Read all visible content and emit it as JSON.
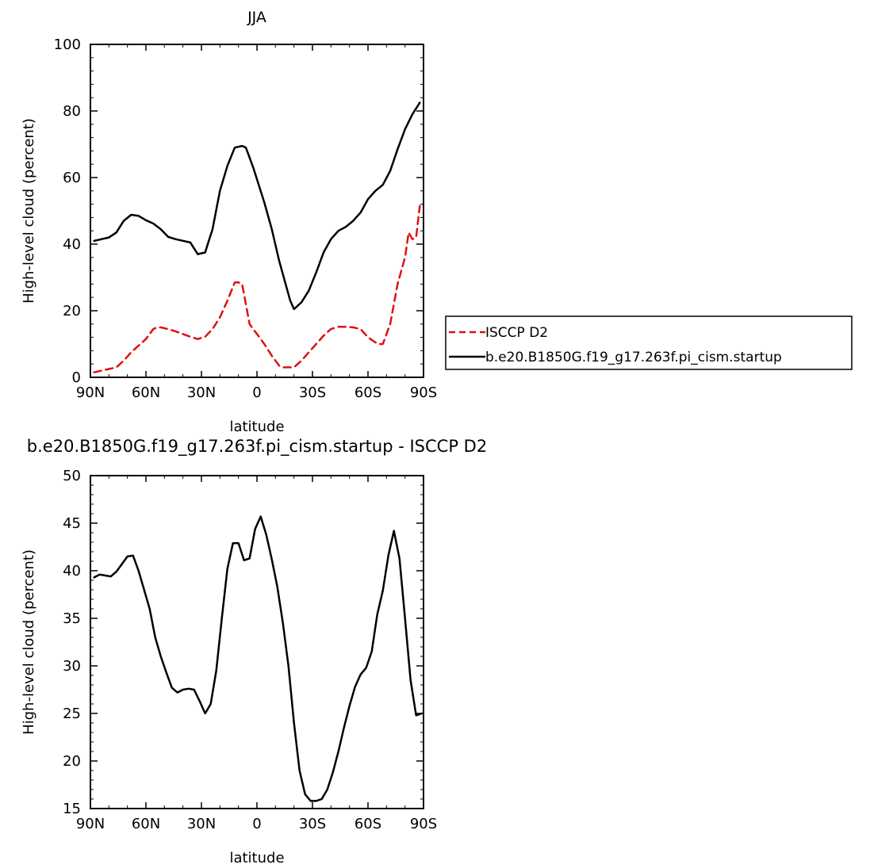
{
  "chart_data": [
    {
      "type": "line",
      "title": "JJA",
      "xlabel": "latitude",
      "ylabel": "High-level cloud (percent)",
      "xlim": [
        -90,
        90
      ],
      "ylim": [
        0,
        100
      ],
      "x_ticks": [
        -90,
        -60,
        -30,
        0,
        30,
        60,
        90
      ],
      "x_tick_labels": [
        "90N",
        "60N",
        "30N",
        "0",
        "30S",
        "60S",
        "90S"
      ],
      "y_ticks": [
        0,
        20,
        40,
        60,
        80,
        100
      ],
      "y_tick_labels": [
        "0",
        "20",
        "40",
        "60",
        "80",
        "100"
      ],
      "legend_position": "right",
      "series": [
        {
          "name": "ISCCP D2",
          "color": "#e01010",
          "dashed": true,
          "x": [
            -88,
            -84,
            -80,
            -76,
            -72,
            -68,
            -64,
            -60,
            -56,
            -54,
            -52,
            -48,
            -44,
            -40,
            -36,
            -32,
            -28,
            -24,
            -20,
            -16,
            -12,
            -10,
            -8,
            -6,
            -4,
            -2,
            0,
            4,
            8,
            12,
            14,
            16,
            20,
            24,
            28,
            32,
            36,
            40,
            44,
            48,
            52,
            56,
            60,
            64,
            66,
            68,
            72,
            76,
            80,
            82,
            84,
            86,
            88
          ],
          "values": [
            1.5,
            2.0,
            2.5,
            3.0,
            5.0,
            7.5,
            9.5,
            11.5,
            14.5,
            15.0,
            15.0,
            14.5,
            13.8,
            13.0,
            12.2,
            11.5,
            12.2,
            14.5,
            18.0,
            23.0,
            28.5,
            28.5,
            28.0,
            22.0,
            16.0,
            14.5,
            13.0,
            10.0,
            6.5,
            3.5,
            3.0,
            3.0,
            3.0,
            5.0,
            7.5,
            10.0,
            12.5,
            14.5,
            15.2,
            15.2,
            15.0,
            14.5,
            12.0,
            10.5,
            10.0,
            10.0,
            16.0,
            28.0,
            36.0,
            43.5,
            41.5,
            42.0,
            51.5
          ]
        },
        {
          "name": "b.e20.B1850G.f19_g17.263f.pi_cism.startup",
          "color": "#000000",
          "dashed": false,
          "x": [
            -88,
            -84,
            -80,
            -76,
            -72,
            -68,
            -64,
            -60,
            -56,
            -52,
            -48,
            -44,
            -40,
            -36,
            -32,
            -28,
            -26,
            -24,
            -20,
            -16,
            -12,
            -8,
            -6,
            -4,
            -2,
            0,
            4,
            8,
            12,
            16,
            18,
            20,
            24,
            28,
            32,
            36,
            40,
            44,
            48,
            52,
            56,
            60,
            64,
            68,
            72,
            76,
            80,
            84,
            88
          ],
          "values": [
            41.0,
            41.5,
            42.0,
            43.5,
            47.0,
            48.8,
            48.5,
            47.2,
            46.2,
            44.5,
            42.2,
            41.5,
            41.0,
            40.5,
            37.0,
            37.5,
            41.0,
            44.5,
            56.0,
            63.5,
            69.0,
            69.5,
            69.0,
            66.0,
            63.0,
            59.5,
            52.5,
            44.5,
            35.0,
            27.0,
            23.0,
            20.5,
            22.5,
            26.0,
            31.5,
            37.5,
            41.5,
            44.0,
            45.2,
            47.0,
            49.5,
            53.5,
            56.0,
            57.8,
            62.0,
            68.5,
            74.5,
            79.0,
            82.5
          ]
        }
      ]
    },
    {
      "type": "line",
      "title": "b.e20.B1850G.f19_g17.263f.pi_cism.startup - ISCCP D2",
      "xlabel": "latitude",
      "ylabel": "High-level cloud (percent)",
      "xlim": [
        -90,
        90
      ],
      "ylim": [
        15,
        50
      ],
      "x_ticks": [
        -90,
        -60,
        -30,
        0,
        30,
        60,
        90
      ],
      "x_tick_labels": [
        "90N",
        "60N",
        "30N",
        "0",
        "30S",
        "60S",
        "90S"
      ],
      "y_ticks": [
        15,
        20,
        25,
        30,
        35,
        40,
        45,
        50
      ],
      "y_tick_labels": [
        "15",
        "20",
        "25",
        "30",
        "35",
        "40",
        "45",
        "50"
      ],
      "series": [
        {
          "color": "#000000",
          "dashed": false,
          "x": [
            -88,
            -85,
            -82,
            -79,
            -76,
            -73,
            -70,
            -67,
            -64,
            -61,
            -58,
            -55,
            -52,
            -49,
            -46,
            -43,
            -40,
            -37,
            -34,
            -31,
            -28,
            -25,
            -22,
            -19,
            -16,
            -13,
            -10,
            -7,
            -4,
            -1,
            2,
            5,
            8,
            11,
            14,
            17,
            20,
            23,
            26,
            29,
            32,
            35,
            38,
            41,
            44,
            47,
            50,
            53,
            56,
            59,
            62,
            65,
            68,
            71,
            74,
            77,
            80,
            83,
            86,
            89
          ],
          "values": [
            39.3,
            39.6,
            39.5,
            39.4,
            39.9,
            40.7,
            41.5,
            41.6,
            40.0,
            38.0,
            36.0,
            33.0,
            31.0,
            29.3,
            27.7,
            27.2,
            27.5,
            27.6,
            27.5,
            26.3,
            25.0,
            26.0,
            29.5,
            35.0,
            40.2,
            42.9,
            42.9,
            41.1,
            41.3,
            44.4,
            45.7,
            43.8,
            41.2,
            38.3,
            34.5,
            30.0,
            24.0,
            19.0,
            16.5,
            15.8,
            15.8,
            16.0,
            17.0,
            18.8,
            21.0,
            23.5,
            25.8,
            27.8,
            29.1,
            29.8,
            31.5,
            35.4,
            37.9,
            41.6,
            44.2,
            41.3,
            35.0,
            28.5,
            24.8,
            25.0
          ]
        }
      ]
    }
  ]
}
